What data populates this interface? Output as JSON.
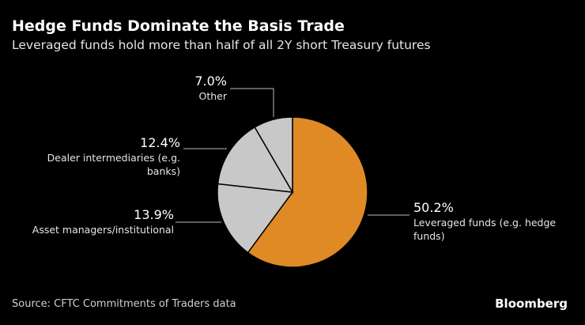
{
  "title": "Hedge Funds Dominate the Basis Trade",
  "subtitle": "Leveraged funds hold more than half of all 2Y short Treasury futures",
  "source": "Source: CFTC Commitments of Traders data",
  "logo": "Bloomberg",
  "chart_data": {
    "type": "pie",
    "title": "Hedge Funds Dominate the Basis Trade",
    "subtitle": "Leveraged funds hold more than half of all 2Y short Treasury futures",
    "slices": [
      {
        "label": "Leveraged funds (e.g. hedge funds)",
        "label_lines": [
          "Leveraged funds (e.g. hedge",
          "funds)"
        ],
        "value": 50.2,
        "value_label": "50.2%",
        "color": "#DF8A24"
      },
      {
        "label": "Asset managers/institutional",
        "label_lines": [
          "Asset managers/institutional"
        ],
        "value": 13.9,
        "value_label": "13.9%",
        "color": "#C8C8C8"
      },
      {
        "label": "Dealer intermediaries (e.g. banks)",
        "label_lines": [
          "Dealer intermediaries (e.g.",
          "banks)"
        ],
        "value": 12.4,
        "value_label": "12.4%",
        "color": "#C8C8C8"
      },
      {
        "label": "Other",
        "label_lines": [
          "Other"
        ],
        "value": 7.0,
        "value_label": "7.0%",
        "color": "#C8C8C8"
      }
    ]
  }
}
